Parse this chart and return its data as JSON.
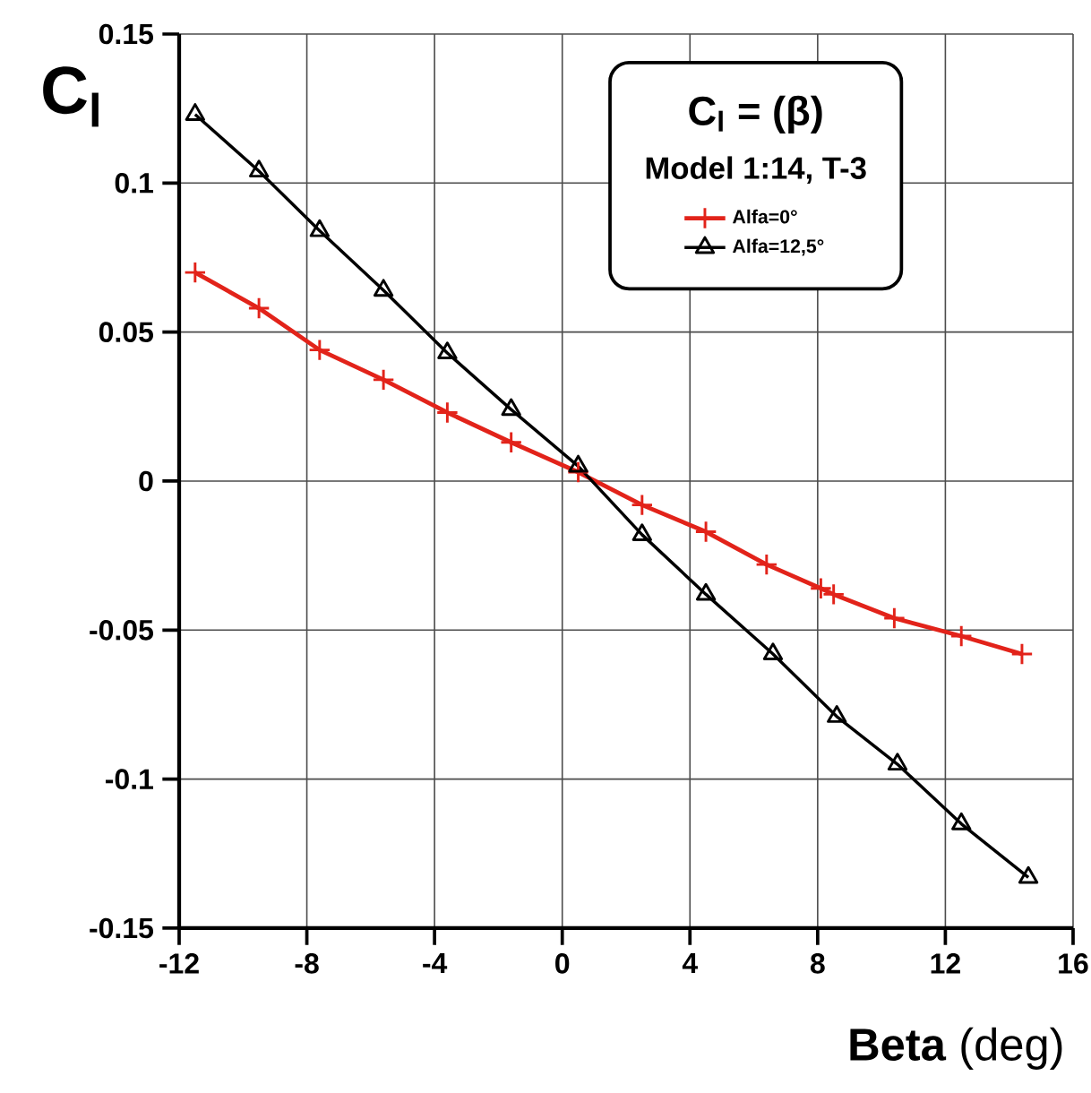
{
  "chart_data": {
    "type": "line",
    "title": "C$_{l}$ = (β)",
    "subtitle": "Model 1:14, T-3",
    "xlabel": "**Beta** (deg)",
    "ylabel": "C$_{l}$",
    "xlim": [
      -12,
      16
    ],
    "xticks": [
      -12,
      -8,
      -4,
      0,
      4,
      8,
      12,
      16
    ],
    "ylim": [
      -0.15,
      0.15
    ],
    "yticks": [
      -0.15,
      -0.1,
      -0.05,
      0,
      0.05,
      0.1,
      0.15
    ],
    "grid": true,
    "legend": "top right",
    "series": [
      {
        "name": "Alfa=0°",
        "color": "#e2231a",
        "marker": "cross",
        "x": [
          -11.5,
          -9.5,
          -7.6,
          -5.6,
          -3.6,
          -1.6,
          0.5,
          2.5,
          4.5,
          6.4,
          8.1,
          8.5,
          10.4,
          12.5,
          14.4
        ],
        "values": [
          0.07,
          0.058,
          0.044,
          0.034,
          0.023,
          0.013,
          0.003,
          -0.008,
          -0.017,
          -0.028,
          -0.036,
          -0.038,
          -0.046,
          -0.052,
          -0.058
        ]
      },
      {
        "name": "Alfa=12,5°",
        "color": "#000000",
        "marker": "triangle",
        "x": [
          -11.5,
          -9.5,
          -7.6,
          -5.6,
          -3.6,
          -1.6,
          0.5,
          2.5,
          4.5,
          6.6,
          8.6,
          10.5,
          12.5,
          14.6
        ],
        "values": [
          0.123,
          0.104,
          0.084,
          0.064,
          0.043,
          0.024,
          0.005,
          -0.018,
          -0.038,
          -0.058,
          -0.079,
          -0.095,
          -0.115,
          -0.133
        ]
      }
    ]
  }
}
